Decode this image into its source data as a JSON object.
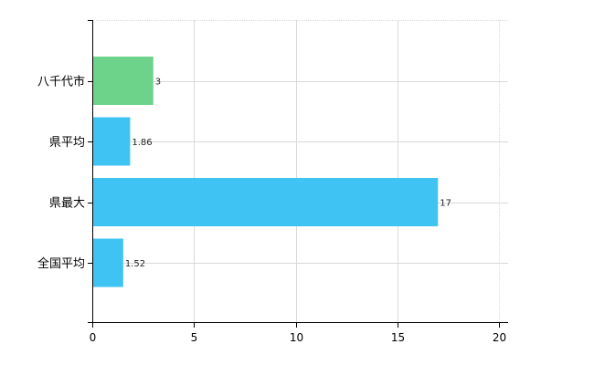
{
  "chart_data": {
    "type": "bar",
    "orientation": "horizontal",
    "categories": [
      "八千代市",
      "県平均",
      "県最大",
      "全国平均"
    ],
    "values": [
      3,
      1.86,
      17,
      1.52
    ],
    "value_labels": [
      "3",
      "1.86",
      "17",
      "1.52"
    ],
    "bar_colors": [
      "#6ed38a",
      "#3ec3f2",
      "#3ec3f2",
      "#3ec3f2"
    ],
    "xlim": [
      0,
      20
    ],
    "x_ticks": [
      0,
      5,
      10,
      15,
      20
    ],
    "x_tick_labels": [
      "0",
      "5",
      "10",
      "15",
      "20"
    ],
    "grid": true,
    "legend": "none"
  }
}
